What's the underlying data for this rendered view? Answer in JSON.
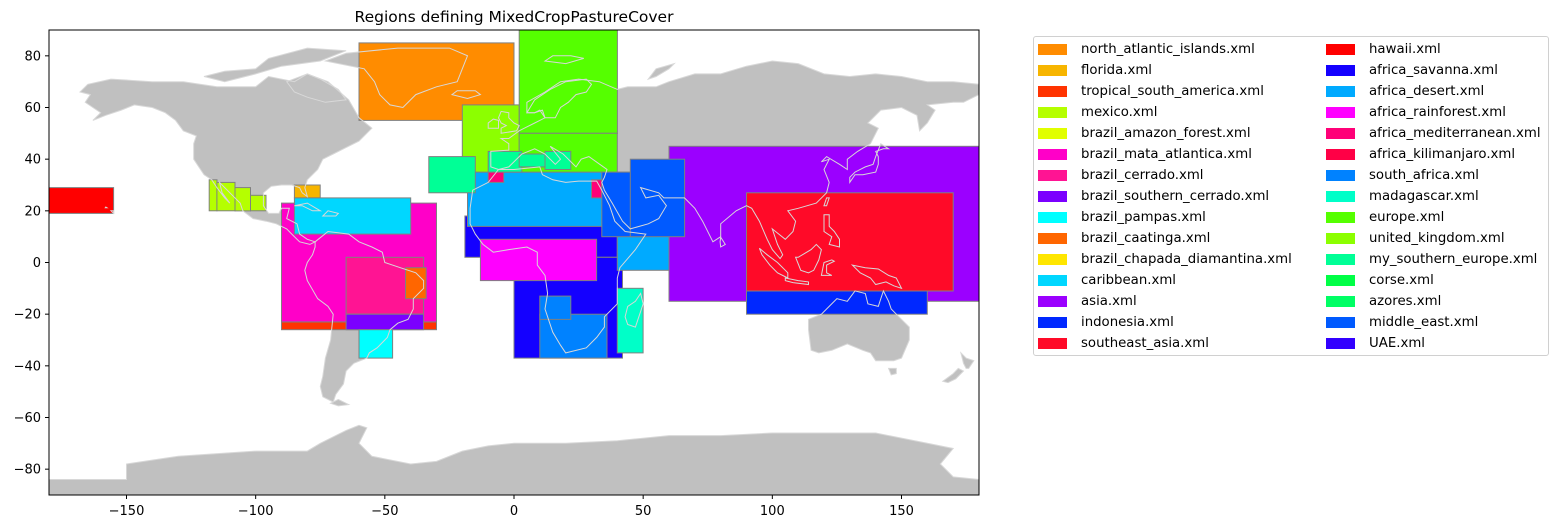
{
  "title": "Regions defining MixedCropPastureCover",
  "map": {
    "land_color": "#c0c0c0",
    "coastline_color": "#d8d8d8",
    "region_edge_color": "#808080",
    "xlim": [
      -180,
      180
    ],
    "ylim": [
      -90,
      90
    ],
    "xticks": [
      -150,
      -100,
      -50,
      0,
      50,
      100,
      150
    ],
    "yticks": [
      -80,
      -60,
      -40,
      -20,
      0,
      20,
      40,
      60,
      80
    ]
  },
  "regions": [
    {
      "name": "north_atlantic_islands.xml",
      "color": "#ff8c00",
      "boxes": [
        [
          -60,
          85,
          0,
          55
        ]
      ]
    },
    {
      "name": "florida.xml",
      "color": "#f7b500",
      "boxes": [
        [
          -85,
          30,
          -75,
          25
        ]
      ]
    },
    {
      "name": "tropical_south_america.xml",
      "color": "#ff3300",
      "boxes": [
        [
          -90,
          -23,
          -30,
          -26
        ]
      ]
    },
    {
      "name": "mexico.xml",
      "color": "#b5ff00",
      "boxes": [
        [
          -118,
          32,
          -115,
          20
        ],
        [
          -115,
          31,
          -108,
          20
        ],
        [
          -108,
          29,
          -102,
          20
        ],
        [
          -102,
          26,
          -96,
          20
        ]
      ]
    },
    {
      "name": "brazil_amazon_forest.xml",
      "color": "#e1ff00",
      "boxes": []
    },
    {
      "name": "brazil_mata_atlantica.xml",
      "color": "#ff00c8",
      "boxes": [
        [
          -90,
          23,
          -30,
          -23
        ]
      ]
    },
    {
      "name": "brazil_cerrado.xml",
      "color": "#ff1493",
      "boxes": [
        [
          -65,
          2,
          -35,
          -20
        ]
      ]
    },
    {
      "name": "brazil_southern_cerrado.xml",
      "color": "#7b00ff",
      "boxes": [
        [
          -65,
          -20,
          -35,
          -26
        ]
      ]
    },
    {
      "name": "brazil_pampas.xml",
      "color": "#00ffff",
      "boxes": [
        [
          -60,
          -26,
          -47,
          -37
        ]
      ]
    },
    {
      "name": "brazil_caatinga.xml",
      "color": "#ff6600",
      "boxes": [
        [
          -42,
          -2,
          -34,
          -14
        ]
      ]
    },
    {
      "name": "brazil_chapada_diamantina.xml",
      "color": "#ffe600",
      "boxes": []
    },
    {
      "name": "caribbean.xml",
      "color": "#00d7ff",
      "boxes": [
        [
          -85,
          25,
          -40,
          11
        ]
      ]
    },
    {
      "name": "asia.xml",
      "color": "#9b00ff",
      "boxes": [
        [
          60,
          45,
          180,
          -15
        ]
      ]
    },
    {
      "name": "indonesia.xml",
      "color": "#0028ff",
      "boxes": [
        [
          90,
          -11,
          160,
          -20
        ]
      ]
    },
    {
      "name": "southeast_asia.xml",
      "color": "#ff0a28",
      "boxes": [
        [
          90,
          27,
          170,
          -11
        ]
      ]
    },
    {
      "name": "hawaii.xml",
      "color": "#ff0000",
      "boxes": [
        [
          -180,
          29,
          -155,
          19
        ]
      ]
    },
    {
      "name": "africa_savanna.xml",
      "color": "#1400ff",
      "boxes": [
        [
          -19,
          18,
          40,
          2
        ],
        [
          0,
          2,
          42,
          -37
        ]
      ]
    },
    {
      "name": "africa_desert.xml",
      "color": "#00aaff",
      "boxes": [
        [
          -18,
          35,
          45,
          14
        ],
        [
          40,
          15,
          60,
          -3
        ]
      ]
    },
    {
      "name": "africa_rainforest.xml",
      "color": "#ff00ff",
      "boxes": [
        [
          -13,
          9,
          32,
          -7
        ]
      ]
    },
    {
      "name": "africa_mediterranean.xml",
      "color": "#ff0078",
      "boxes": [
        [
          -10,
          36,
          -4,
          31
        ],
        [
          30,
          32,
          34,
          25
        ]
      ]
    },
    {
      "name": "africa_kilimanjaro.xml",
      "color": "#ff0046",
      "boxes": []
    },
    {
      "name": "south_africa.xml",
      "color": "#0082ff",
      "boxes": [
        [
          10,
          -20,
          36,
          -37
        ],
        [
          10,
          -13,
          22,
          -22
        ]
      ]
    },
    {
      "name": "madagascar.xml",
      "color": "#00ffc8",
      "boxes": [
        [
          40,
          -10,
          50,
          -35
        ]
      ]
    },
    {
      "name": "europe.xml",
      "color": "#55ff00",
      "boxes": [
        [
          2,
          90,
          40,
          50
        ],
        [
          0,
          50,
          40,
          35
        ]
      ]
    },
    {
      "name": "united_kingdom.xml",
      "color": "#8cff00",
      "boxes": [
        [
          -20,
          61,
          2,
          35
        ]
      ]
    },
    {
      "name": "my_southern_europe.xml",
      "color": "#00ff96",
      "boxes": [
        [
          -33,
          41,
          -15,
          27
        ],
        [
          -10,
          43,
          3,
          35
        ],
        [
          2,
          42,
          12,
          37
        ],
        [
          12,
          43,
          22,
          36
        ]
      ]
    },
    {
      "name": "corse.xml",
      "color": "#00ff46",
      "boxes": []
    },
    {
      "name": "azores.xml",
      "color": "#00ff64",
      "boxes": []
    },
    {
      "name": "middle_east.xml",
      "color": "#005aff",
      "boxes": [
        [
          34,
          35,
          50,
          10
        ],
        [
          45,
          40,
          66,
          10
        ]
      ]
    },
    {
      "name": "UAE.xml",
      "color": "#3200ff",
      "boxes": []
    }
  ]
}
